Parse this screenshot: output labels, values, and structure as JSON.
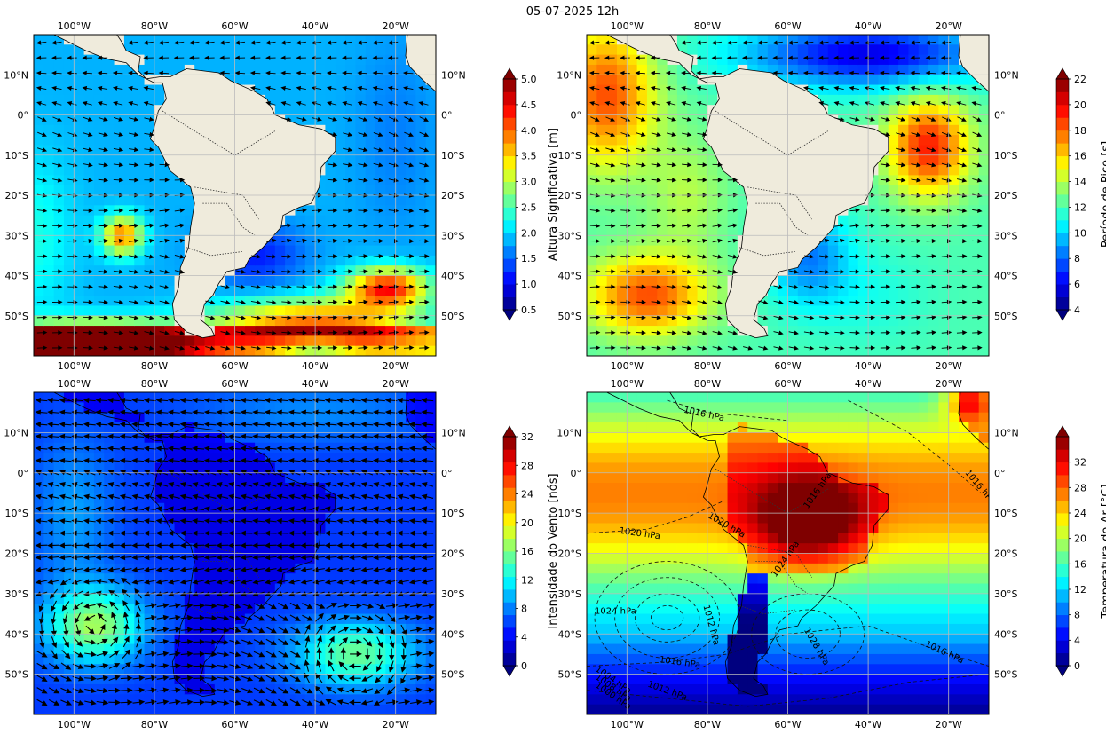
{
  "figure": {
    "title": "05-07-2025 12h"
  },
  "map_extent": {
    "lon": [
      -110,
      -10
    ],
    "lat": [
      -60,
      20
    ]
  },
  "axes_ticks": {
    "lon": [
      {
        "value": -100,
        "label": "100°W"
      },
      {
        "value": -80,
        "label": "80°W"
      },
      {
        "value": -60,
        "label": "60°W"
      },
      {
        "value": -40,
        "label": "40°W"
      },
      {
        "value": -20,
        "label": "20°W"
      }
    ],
    "lat": [
      {
        "value": 10,
        "label": "10°N"
      },
      {
        "value": 0,
        "label": "0°"
      },
      {
        "value": -10,
        "label": "10°S"
      },
      {
        "value": -20,
        "label": "20°S"
      },
      {
        "value": -30,
        "label": "30°S"
      },
      {
        "value": -40,
        "label": "40°S"
      },
      {
        "value": -50,
        "label": "50°S"
      }
    ]
  },
  "colors": {
    "land": "#efebdc",
    "jet": [
      "#00007f",
      "#0000ff",
      "#007fff",
      "#00ffff",
      "#7fff7f",
      "#ffff00",
      "#ff7f00",
      "#ff0000",
      "#7f0000"
    ]
  },
  "chart_data": [
    {
      "type": "heatmap",
      "field": "significant_wave_height",
      "colorbar_label": "Altura Significativa [m]",
      "ticks": [
        "0.5",
        "1.0",
        "1.5",
        "2.0",
        "2.5",
        "3.0",
        "3.5",
        "4.0",
        "4.5",
        "5.0"
      ],
      "range": [
        0.5,
        5.0
      ],
      "extend": "both",
      "vectors": "wave direction arrows",
      "land_mask": true
    },
    {
      "type": "heatmap",
      "field": "peak_period",
      "colorbar_label": "Período de Pico [s]",
      "ticks": [
        "4",
        "6",
        "8",
        "10",
        "12",
        "14",
        "16",
        "18",
        "20",
        "22"
      ],
      "range": [
        4,
        22
      ],
      "extend": "both",
      "vectors": "wave direction arrows",
      "land_mask": true
    },
    {
      "type": "heatmap",
      "field": "wind_speed",
      "colorbar_label": "Intensidade do Vento [nós]",
      "ticks": [
        "0",
        "4",
        "8",
        "12",
        "16",
        "20",
        "24",
        "28",
        "32"
      ],
      "range": [
        0,
        32
      ],
      "extend": "both",
      "vectors": "wind arrows",
      "land_mask": false
    },
    {
      "type": "heatmap",
      "field": "air_temperature",
      "colorbar_label": "Temperatura do Ar [°C]",
      "ticks": [
        "0",
        "4",
        "8",
        "12",
        "16",
        "20",
        "24",
        "28",
        "32"
      ],
      "range": [
        0,
        36
      ],
      "extend": "both",
      "land_mask": false,
      "contours": [
        {
          "label": "1016 hPa",
          "lon": -86,
          "lat": 15,
          "angle": 12
        },
        {
          "label": "1016 hPa",
          "lon": -16,
          "lat": 0,
          "angle": 50
        },
        {
          "label": "1020 hPa",
          "lon": -80,
          "lat": -11,
          "angle": 30
        },
        {
          "label": "1020 hPa",
          "lon": -102,
          "lat": -15,
          "angle": 8
        },
        {
          "label": "1016 hPa",
          "lon": -55,
          "lat": -9,
          "angle": -55
        },
        {
          "label": "1024 hPa",
          "lon": -63,
          "lat": -26,
          "angle": -55
        },
        {
          "label": "1024 hPa",
          "lon": -108,
          "lat": -35,
          "angle": 0
        },
        {
          "label": "1012 hPa",
          "lon": -81,
          "lat": -33,
          "angle": 75
        },
        {
          "label": "1028 hPa",
          "lon": -56,
          "lat": -39,
          "angle": 60
        },
        {
          "label": "1016 hPa",
          "lon": -26,
          "lat": -43,
          "angle": 25
        },
        {
          "label": "1016 hPa",
          "lon": -92,
          "lat": -47,
          "angle": 8
        },
        {
          "label": "1012 hPa",
          "lon": -95,
          "lat": -53,
          "angle": 20
        },
        {
          "label": "1004 hPa",
          "lon": -108,
          "lat": -49,
          "angle": 35
        },
        {
          "label": "1008 hPa",
          "lon": -108,
          "lat": -51,
          "angle": 35
        },
        {
          "label": "1000 hPa",
          "lon": -108,
          "lat": -53,
          "angle": 35
        }
      ]
    }
  ]
}
